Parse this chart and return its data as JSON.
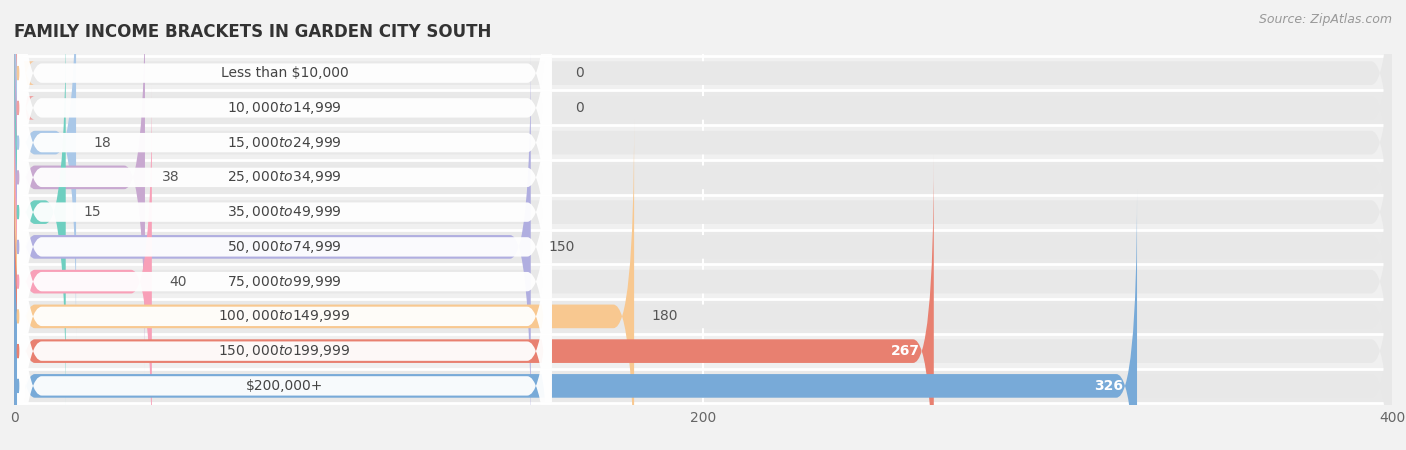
{
  "title": "FAMILY INCOME BRACKETS IN GARDEN CITY SOUTH",
  "source": "Source: ZipAtlas.com",
  "categories": [
    "Less than $10,000",
    "$10,000 to $14,999",
    "$15,000 to $24,999",
    "$25,000 to $34,999",
    "$35,000 to $49,999",
    "$50,000 to $74,999",
    "$75,000 to $99,999",
    "$100,000 to $149,999",
    "$150,000 to $199,999",
    "$200,000+"
  ],
  "values": [
    0,
    0,
    18,
    38,
    15,
    150,
    40,
    180,
    267,
    326
  ],
  "bar_colors": [
    "#f5c89a",
    "#f0a0a0",
    "#aac8e8",
    "#c8a8d0",
    "#6ecfc0",
    "#b0aee0",
    "#f8a0b8",
    "#f8c890",
    "#e88070",
    "#78aad8"
  ],
  "value_label_white": [
    false,
    false,
    false,
    false,
    false,
    false,
    false,
    false,
    true,
    true
  ],
  "xlim": [
    0,
    400
  ],
  "xticks": [
    0,
    200,
    400
  ],
  "background_color": "#f2f2f2",
  "bar_bg_color": "#e8e8e8",
  "row_bg_even": "#f7f7f7",
  "row_bg_odd": "#efefef",
  "title_fontsize": 12,
  "source_fontsize": 9,
  "label_fontsize": 10,
  "value_fontsize": 10
}
